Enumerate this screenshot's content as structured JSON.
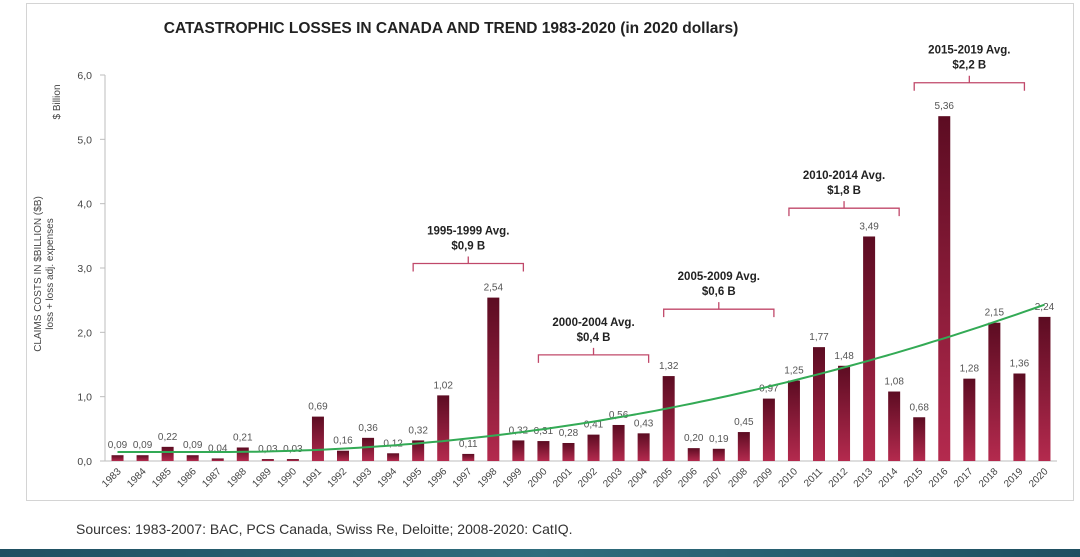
{
  "chart_data": {
    "type": "bar",
    "title": "CATASTROPHIC LOSSES IN CANADA AND TREND 1983-2020 (in 2020 dollars)",
    "ylabel": "CLAIMS COSTS IN $BILLION ($B)",
    "ylabel_sub": "loss + loss adj. expenses",
    "unit_label": "$ Billion",
    "ylim": [
      0,
      6
    ],
    "yticks": [
      "0,0",
      "1,0",
      "2,0",
      "3,0",
      "4,0",
      "5,0",
      "6,0"
    ],
    "categories": [
      "1983",
      "1984",
      "1985",
      "1986",
      "1987",
      "1988",
      "1989",
      "1990",
      "1991",
      "1992",
      "1993",
      "1994",
      "1995",
      "1996",
      "1997",
      "1998",
      "1999",
      "2000",
      "2001",
      "2002",
      "2003",
      "2004",
      "2005",
      "2006",
      "2007",
      "2008",
      "2009",
      "2010",
      "2011",
      "2012",
      "2013",
      "2014",
      "2015",
      "2016",
      "2017",
      "2018",
      "2019",
      "2020"
    ],
    "values": [
      0.09,
      0.09,
      0.22,
      0.09,
      0.04,
      0.21,
      0.03,
      0.03,
      0.69,
      0.16,
      0.36,
      0.12,
      0.32,
      1.02,
      0.11,
      2.54,
      0.32,
      0.31,
      0.28,
      0.41,
      0.56,
      0.43,
      1.32,
      0.2,
      0.19,
      0.45,
      0.97,
      1.25,
      1.77,
      1.48,
      3.49,
      1.08,
      0.68,
      5.36,
      1.28,
      2.15,
      1.36,
      2.24
    ],
    "value_labels": [
      "0,09",
      "0,09",
      "0,22",
      "0,09",
      "0,04",
      "0,21",
      "0,03",
      "0,03",
      "0,69",
      "0,16",
      "0,36",
      "0,12",
      "0,32",
      "1,02",
      "0,11",
      "2,54",
      "0,32",
      "0,31",
      "0,28",
      "0,41",
      "0,56",
      "0,43",
      "1,32",
      "0,20",
      "0,19",
      "0,45",
      "0,97",
      "1,25",
      "1,77",
      "1,48",
      "3,49",
      "1,08",
      "0,68",
      "5,36",
      "1,28",
      "2,15",
      "1,36",
      "2,24"
    ],
    "trend": {
      "y_start": 0.14,
      "y_min": 0.14,
      "min_at": "1987",
      "y_end": 2.43
    },
    "annotations": [
      {
        "line1": "1995-1999 Avg.",
        "line2": "$0,9 B",
        "from": "1995",
        "to": "1999",
        "level": 3.07
      },
      {
        "line1": "2000-2004 Avg.",
        "line2": "$0,4 B",
        "from": "2000",
        "to": "2004",
        "level": 1.65
      },
      {
        "line1": "2005-2009 Avg.",
        "line2": "$0,6 B",
        "from": "2005",
        "to": "2009",
        "level": 2.36
      },
      {
        "line1": "2010-2014 Avg.",
        "line2": "$1,8 B",
        "from": "2010",
        "to": "2014",
        "level": 3.93
      },
      {
        "line1": "2015-2019 Avg.",
        "line2": "$2,2 B",
        "from": "2015",
        "to": "2019",
        "level": 5.88
      }
    ],
    "colors": {
      "bar_dark": "#5c0c22",
      "bar_light": "#b42a4e",
      "trend": "#33aa55",
      "bracket": "#c0486a"
    }
  },
  "footer": {
    "source": "Sources: 1983-2007: BAC, PCS Canada, Swiss Re, Deloitte; 2008-2020: CatIQ."
  }
}
